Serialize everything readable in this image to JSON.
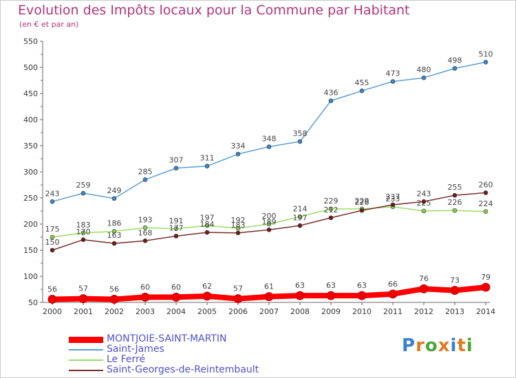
{
  "chart_data": {
    "type": "line",
    "title": "Evolution des Impôts locaux pour la Commune par Habitant",
    "subtitle": "(en € et par an)",
    "xlabel": "",
    "ylabel": "",
    "ylim": [
      50,
      550
    ],
    "yticks": [
      50,
      100,
      150,
      200,
      250,
      300,
      350,
      400,
      450,
      500,
      550
    ],
    "x": [
      "2000",
      "2001",
      "2002",
      "2003",
      "2004",
      "2005",
      "2006",
      "2007",
      "2008",
      "2009",
      "2010",
      "2011",
      "2012",
      "2013",
      "2014"
    ],
    "grid": false,
    "legend_position": "bottom-left",
    "series": [
      {
        "name": "Saint-James",
        "color": "#5a9ed6",
        "marker": "#3d85c6",
        "values": [
          243,
          259,
          249,
          285,
          307,
          311,
          334,
          348,
          358,
          436,
          455,
          473,
          480,
          498,
          510
        ]
      },
      {
        "name": "Le Ferré",
        "color": "#99dd66",
        "marker": "#88cc55",
        "values": [
          175,
          183,
          186,
          193,
          191,
          197,
          192,
          200,
          214,
          229,
          229,
          233,
          225,
          226,
          224
        ]
      },
      {
        "name": "Saint-Georges-de-Reintembault",
        "color": "#7a2a2a",
        "marker": "#6b1e1e",
        "values": [
          150,
          170,
          163,
          168,
          177,
          184,
          183,
          189,
          197,
          212,
          226,
          237,
          243,
          255,
          260
        ]
      },
      {
        "name": "MONTJOIE-SAINT-MARTIN",
        "color": "#ff0000",
        "marker": "#ee0000",
        "bold": true,
        "values": [
          56,
          57,
          56,
          60,
          60,
          62,
          57,
          61,
          63,
          63,
          63,
          66,
          76,
          73,
          79
        ]
      }
    ],
    "legend_order": [
      "MONTJOIE-SAINT-MARTIN",
      "Saint-James",
      "Le Ferré",
      "Saint-Georges-de-Reintembault"
    ]
  },
  "logo": {
    "letters": [
      "P",
      "r",
      "o",
      "x",
      "i",
      "t",
      "i"
    ],
    "colors": [
      "#3a7fd0",
      "#e07a1e",
      "#4aa83a",
      "#e07a1e",
      "#3a7fd0",
      "#e07a1e",
      "#4aa83a"
    ]
  }
}
